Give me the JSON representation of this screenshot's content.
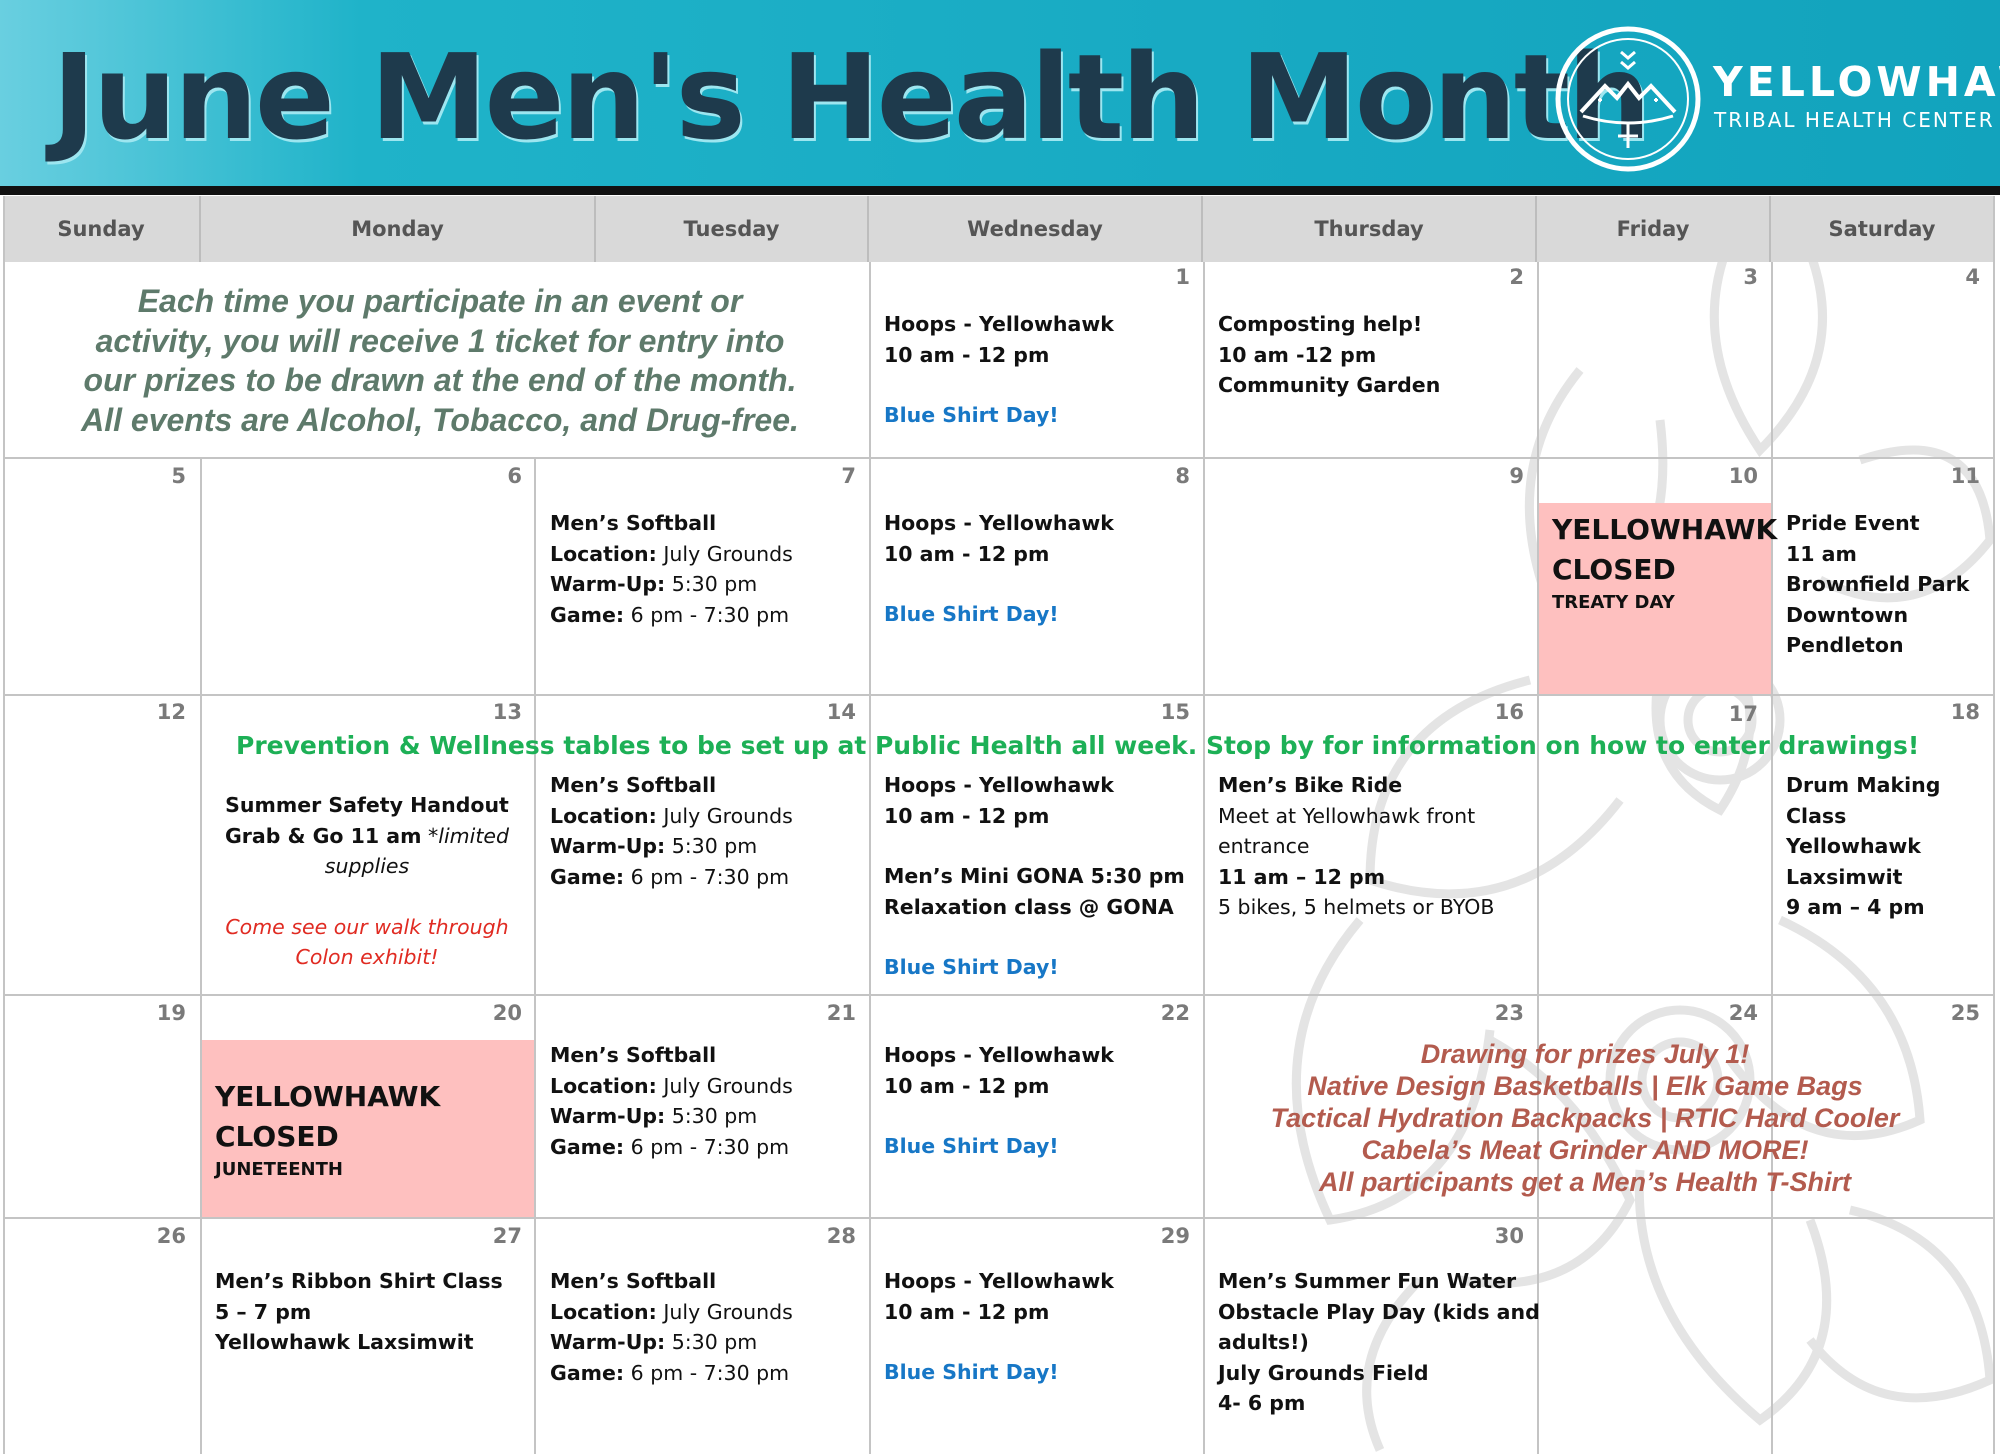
{
  "header": {
    "title": "June Men's Health Month",
    "org_name": "YELLOWHAWK",
    "org_sub": "TRIBAL HEALTH CENTER"
  },
  "weekdays": [
    "Sunday",
    "Monday",
    "Tuesday",
    "Wednesday",
    "Thursday",
    "Friday",
    "Saturday"
  ],
  "intro": [
    "Each time you participate in an event or",
    "activity, you will receive 1 ticket for entry into",
    "our prizes to be drawn at the end of the month.",
    "All events are Alcohol, Tobacco, and Drug-free."
  ],
  "days": {
    "d1": "1",
    "d2": "2",
    "d3": "3",
    "d4": "4",
    "d5": "5",
    "d6": "6",
    "d7": "7",
    "d8": "8",
    "d9": "9",
    "d10": "10",
    "d11": "11",
    "d12": "12",
    "d13": "13",
    "d14": "14",
    "d15": "15",
    "d16": "16",
    "d17": "17",
    "d18": "18",
    "d19": "19",
    "d20": "20",
    "d21": "21",
    "d22": "22",
    "d23": "23",
    "d24": "24",
    "d25": "25",
    "d26": "26",
    "d27": "27",
    "d28": "28",
    "d29": "29",
    "d30": "30"
  },
  "hoops": {
    "title": "Hoops - Yellowhawk",
    "time": "10 am - 12 pm",
    "blue_shirt": "Blue Shirt Day!"
  },
  "softball": {
    "title": "Men’s Softball",
    "location_label": "Location:",
    "location_value": " July Grounds",
    "warmup_label": "Warm-Up:",
    "warmup_value": " 5:30 pm",
    "game_label": "Game:",
    "game_value": " 6 pm  - 7:30 pm"
  },
  "events": {
    "compost": [
      "Composting help!",
      "10 am -12 pm",
      "Community Garden"
    ],
    "closed_10": {
      "big1": "YELLOWHAWK",
      "big2": "CLOSED",
      "small": "TREATY DAY"
    },
    "pride": [
      "Pride Event",
      "11 am",
      "Brownfield Park",
      "Downtown",
      "Pendleton"
    ],
    "wellness_banner": "Prevention & Wellness tables to be set up at Public Health all week. Stop by for information on how to enter drawings!",
    "safety": {
      "line1": "Summer Safety Handout",
      "line2_bold": "Grab & Go 11 am",
      "line2_rest": " *limited",
      "line3": "supplies",
      "exhibit1": "Come see our walk through",
      "exhibit2": "Colon exhibit!"
    },
    "gona": [
      "Men’s Mini GONA 5:30 pm",
      "Relaxation class @ GONA"
    ],
    "bike": {
      "title": "Men’s Bike Ride",
      "meet1": "Meet at Yellowhawk front",
      "meet2": "entrance",
      "time": "11 am – 12 pm",
      "bikes": "5 bikes, 5 helmets or BYOB"
    },
    "drum": [
      "Drum Making",
      "Class",
      "Yellowhawk",
      "Laxsimwit",
      "9 am – 4 pm"
    ],
    "closed_20": {
      "big1": "YELLOWHAWK",
      "big2": "CLOSED",
      "small": "JUNETEENTH"
    },
    "prizes": [
      "Drawing for prizes July 1!",
      "Native Design Basketballs | Elk Game Bags",
      "Tactical Hydration Backpacks | RTIC Hard Cooler",
      "Cabela’s Meat Grinder AND MORE!",
      "All participants get a Men’s Health T-Shirt"
    ],
    "ribbon": [
      "Men’s Ribbon Shirt Class",
      "5 – 7 pm",
      "Yellowhawk Laxsimwit"
    ],
    "water": [
      "Men’s Summer Fun Water",
      "Obstacle Play Day (kids and",
      "adults!)",
      "July Grounds Field",
      "4- 6 pm"
    ]
  },
  "colors": {
    "banner": "#18aac3",
    "title": "#1e3a4c",
    "closed_bg": "#fec0bf",
    "blue_shirt": "#1777c6",
    "wellness": "#1db056",
    "prizes": "#b35b4e",
    "intro": "#5e7a6b"
  }
}
